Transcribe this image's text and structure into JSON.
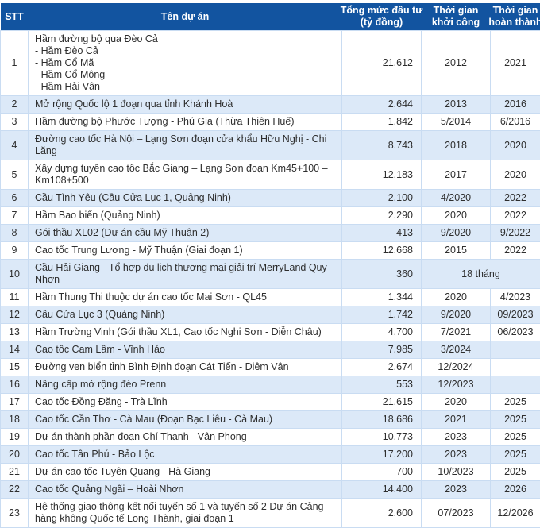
{
  "colors": {
    "header_bg": "#1254A0",
    "header_text": "#FFFFFF",
    "row_alt_bg": "#DCE9F8",
    "row_bg": "#FFFFFF",
    "border": "#C9DCF2",
    "text": "#2E2E2E"
  },
  "table": {
    "columns": [
      {
        "id": "stt",
        "lines": [
          "STT"
        ]
      },
      {
        "id": "ten_du_an",
        "lines": [
          "Tên dự án"
        ]
      },
      {
        "id": "tong_muc_dau_tu",
        "lines": [
          "Tổng mức đầu tư",
          "(tỷ đồng)"
        ]
      },
      {
        "id": "thoi_gian_khoi_cong",
        "lines": [
          "Thời gian",
          "khởi công"
        ]
      },
      {
        "id": "thoi_gian_hoan_thanh",
        "lines": [
          "Thời gian",
          "hoàn thành"
        ]
      }
    ],
    "rows": [
      {
        "stt": "1",
        "name_lines": [
          "Hầm đường bộ qua Đèo Cả",
          "- Hầm Đèo Cả",
          "- Hầm Cổ Mã",
          "- Hầm Cổ Mông",
          "- Hầm Hải Vân"
        ],
        "investment": "21.612",
        "start": "2012",
        "finish": "2021"
      },
      {
        "stt": "2",
        "name_lines": [
          "Mở rộng Quốc lộ 1 đoạn qua tỉnh Khánh Hoà"
        ],
        "investment": "2.644",
        "start": "2013",
        "finish": "2016"
      },
      {
        "stt": "3",
        "name_lines": [
          "Hầm đường bộ Phước Tượng - Phú Gia (Thừa Thiên Huế)"
        ],
        "investment": "1.842",
        "start": "5/2014",
        "finish": "6/2016"
      },
      {
        "stt": "4",
        "name_lines": [
          "Đường cao tốc Hà Nội – Lạng Sơn đoạn cửa khẩu Hữu Nghị - Chi Lăng"
        ],
        "investment": "8.743",
        "start": "2018",
        "finish": "2020"
      },
      {
        "stt": "5",
        "name_lines": [
          "Xây dựng tuyến cao tốc Bắc Giang – Lạng Sơn đoạn Km45+100 – Km108+500"
        ],
        "investment": "12.183",
        "start": "2017",
        "finish": "2020"
      },
      {
        "stt": "6",
        "name_lines": [
          "Cầu Tình Yêu (Cầu Cửa Lục 1, Quảng Ninh)"
        ],
        "investment": "2.100",
        "start": "4/2020",
        "finish": "2022"
      },
      {
        "stt": "7",
        "name_lines": [
          "Hầm Bao biển (Quảng Ninh)"
        ],
        "investment": "2.290",
        "start": "2020",
        "finish": "2022"
      },
      {
        "stt": "8",
        "name_lines": [
          "Gói thầu XL02 (Dự án cầu Mỹ Thuận 2)"
        ],
        "investment": "413",
        "start": "9/2020",
        "finish": "9/2022"
      },
      {
        "stt": "9",
        "name_lines": [
          "Cao tốc Trung Lương - Mỹ Thuận (Giai đoạn 1)"
        ],
        "investment": "12.668",
        "start": "2015",
        "finish": "2022"
      },
      {
        "stt": "10",
        "name_lines": [
          "Cầu Hải Giang - Tổ hợp du lịch thương mại giải trí MerryLand Quy Nhơn"
        ],
        "investment": "360",
        "start": "18 tháng",
        "finish": null,
        "span_start_finish": true
      },
      {
        "stt": "11",
        "name_lines": [
          "Hầm Thung Thi thuộc dự án cao tốc Mai Sơn - QL45"
        ],
        "investment": "1.344",
        "start": "2020",
        "finish": "4/2023"
      },
      {
        "stt": "12",
        "name_lines": [
          "Cầu Cửa Lục 3 (Quảng Ninh)"
        ],
        "investment": "1.742",
        "start": "9/2020",
        "finish": "09/2023"
      },
      {
        "stt": "13",
        "name_lines": [
          "Hầm Trường Vinh (Gói thầu XL1, Cao tốc Nghi Sơn - Diễn Châu)"
        ],
        "investment": "4.700",
        "start": "7/2021",
        "finish": "06/2023"
      },
      {
        "stt": "14",
        "name_lines": [
          "Cao tốc Cam Lâm - Vĩnh Hảo"
        ],
        "investment": "7.985",
        "start": "3/2024",
        "finish": ""
      },
      {
        "stt": "15",
        "name_lines": [
          "Đường ven biển tỉnh Bình Định đoạn Cát Tiến - Diêm Vân"
        ],
        "investment": "2.674",
        "start": "12/2024",
        "finish": ""
      },
      {
        "stt": "16",
        "name_lines": [
          "Nâng cấp mở rộng đèo Prenn"
        ],
        "investment": "553",
        "start": "12/2023",
        "finish": ""
      },
      {
        "stt": "17",
        "name_lines": [
          "Cao tốc Đồng Đăng - Trà Lĩnh"
        ],
        "investment": "21.615",
        "start": "2020",
        "finish": "2025"
      },
      {
        "stt": "18",
        "name_lines": [
          "Cao tốc Cần Thơ - Cà Mau (Đoạn Bạc Liêu - Cà Mau)"
        ],
        "investment": "18.686",
        "start": "2021",
        "finish": "2025"
      },
      {
        "stt": "19",
        "name_lines": [
          "Dự án thành phần đoạn Chí Thạnh - Vân Phong"
        ],
        "investment": "10.773",
        "start": "2023",
        "finish": "2025"
      },
      {
        "stt": "20",
        "name_lines": [
          "Cao tốc Tân Phú - Bảo Lộc"
        ],
        "investment": "17.200",
        "start": "2023",
        "finish": "2025"
      },
      {
        "stt": "21",
        "name_lines": [
          "Dự án cao tốc Tuyên Quang - Hà Giang"
        ],
        "investment": "700",
        "start": "10/2023",
        "finish": "2025"
      },
      {
        "stt": "22",
        "name_lines": [
          "Cao tốc Quảng Ngãi – Hoài Nhơn"
        ],
        "investment": "14.400",
        "start": "2023",
        "finish": "2026"
      },
      {
        "stt": "23",
        "name_lines": [
          "Hệ thống giao thông kết nối tuyến số 1 và tuyến số 2 Dự án Cảng hàng không Quốc tế Long Thành, giai đoạn 1"
        ],
        "investment": "2.600",
        "start": "07/2023",
        "finish": "12/2026"
      }
    ]
  }
}
